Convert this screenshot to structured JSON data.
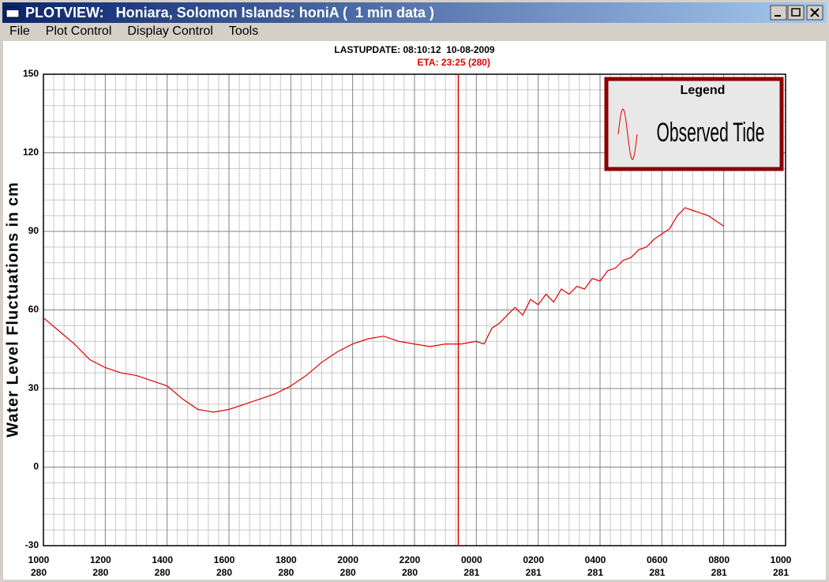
{
  "window": {
    "title": "PLOTVIEW:   Honiara, Solomon Islands: honiA (  1 min data )",
    "menu": [
      "File",
      "Plot Control",
      "Display Control",
      "Tools"
    ]
  },
  "chart_data": {
    "type": "line",
    "header": "LASTUPDATE: 08:10:12  10-08-2009",
    "annotation": "ETA: 23:25 (280)",
    "eta_x": 13.4167,
    "y_label": "Water Level Fluctuations in cm",
    "legend_title": "Legend",
    "x": [
      0,
      0.5,
      1,
      1.5,
      2,
      2.5,
      3,
      3.5,
      4,
      4.5,
      5,
      5.5,
      6,
      6.5,
      7,
      7.5,
      8,
      8.5,
      9,
      9.5,
      10,
      10.5,
      11,
      11.5,
      12,
      12.5,
      13,
      13.5,
      14,
      14.25,
      14.5,
      14.75,
      15,
      15.25,
      15.5,
      15.75,
      16,
      16.25,
      16.5,
      16.75,
      17,
      17.25,
      17.5,
      17.75,
      18,
      18.25,
      18.5,
      18.75,
      19,
      19.25,
      19.5,
      19.75,
      20,
      20.25,
      20.5,
      20.75,
      21,
      21.25,
      21.5,
      21.75,
      22
    ],
    "series": [
      {
        "name": "Observed Tide",
        "color": "#e00000",
        "values": [
          57,
          52,
          47,
          41,
          38,
          36,
          35,
          33,
          31,
          26,
          22,
          21,
          22,
          24,
          26,
          28,
          31,
          35,
          40,
          44,
          47,
          49,
          50,
          48,
          47,
          46,
          47,
          47,
          48,
          47,
          53,
          55,
          58,
          61,
          58,
          64,
          62,
          66,
          63,
          68,
          66,
          69,
          68,
          72,
          71,
          75,
          76,
          79,
          80,
          83,
          84,
          87,
          89,
          91,
          96,
          99,
          98,
          97,
          96,
          94,
          92
        ]
      }
    ],
    "xlim": [
      0,
      24
    ],
    "xticks": [
      {
        "value": 0,
        "label": "1000",
        "day": "280"
      },
      {
        "value": 2,
        "label": "1200",
        "day": "280",
        "color": "#0000cc"
      },
      {
        "value": 4,
        "label": "1400",
        "day": "280"
      },
      {
        "value": 6,
        "label": "1600",
        "day": "280"
      },
      {
        "value": 8,
        "label": "1800",
        "day": "280"
      },
      {
        "value": 10,
        "label": "2000",
        "day": "280"
      },
      {
        "value": 12,
        "label": "2200",
        "day": "280"
      },
      {
        "value": 14,
        "label": "0000",
        "day": "281",
        "color": "#e00000"
      },
      {
        "value": 16,
        "label": "0200",
        "day": "281"
      },
      {
        "value": 18,
        "label": "0400",
        "day": "281"
      },
      {
        "value": 20,
        "label": "0600",
        "day": "281"
      },
      {
        "value": 22,
        "label": "0800",
        "day": "281"
      },
      {
        "value": 24,
        "label": "1000",
        "day": "281"
      }
    ],
    "ylim": [
      -30,
      150
    ],
    "yticks": [
      -30,
      0,
      30,
      60,
      90,
      120,
      150
    ],
    "grid": true
  }
}
